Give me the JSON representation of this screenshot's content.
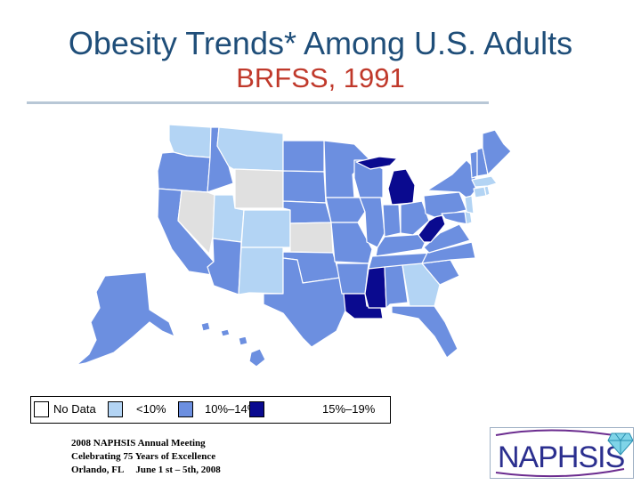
{
  "title": {
    "line1": "Obesity Trends* Among U.S. Adults",
    "line2": "BRFSS, 1991"
  },
  "colors": {
    "title_blue": "#1f4e79",
    "title_red": "#c0392b",
    "no_data": "#ffffff",
    "lt10": "#b3d4f4",
    "p10_14": "#6c8fe0",
    "p15_19": "#0a0a8f",
    "grey_states": "#e0e0e0",
    "state_border": "#ffffff"
  },
  "legend": [
    {
      "label": "No Data",
      "color": "#ffffff"
    },
    {
      "label": "<10%",
      "color": "#b3d4f4"
    },
    {
      "label": "10%–14%",
      "color": "#6c8fe0"
    },
    {
      "label": "15%–19%",
      "color": "#0a0a8f"
    }
  ],
  "footer": {
    "line1": "2008 NAPHSIS Annual Meeting",
    "line2": "Celebrating 75 Years of Excellence",
    "line3": "Orlando, FL     June 1 st – 5th, 2008"
  },
  "logo": {
    "text": "NAPHSIS",
    "icon": "diamond-icon"
  }
}
